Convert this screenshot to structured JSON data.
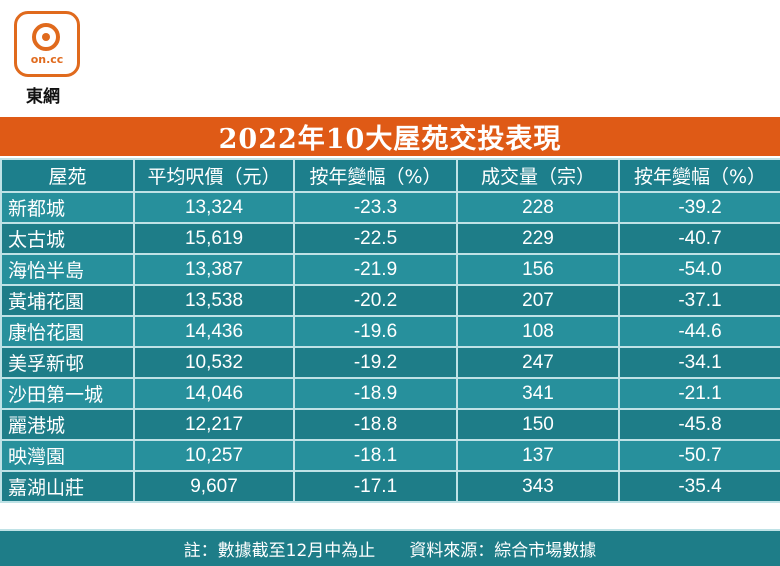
{
  "brand": {
    "logo_text": "on.cc",
    "name": "東網"
  },
  "title": "2022年10大屋苑交投表現",
  "headers": [
    "屋苑",
    "平均呎價（元）",
    "按年變幅（%）",
    "成交量（宗）",
    "按年變幅（%）"
  ],
  "rows": [
    {
      "name": "新都城",
      "avg_price": "13,324",
      "price_change": "-23.3",
      "volume": "228",
      "volume_change": "-39.2"
    },
    {
      "name": "太古城",
      "avg_price": "15,619",
      "price_change": "-22.5",
      "volume": "229",
      "volume_change": "-40.7"
    },
    {
      "name": "海怡半島",
      "avg_price": "13,387",
      "price_change": "-21.9",
      "volume": "156",
      "volume_change": "-54.0"
    },
    {
      "name": "黃埔花園",
      "avg_price": "13,538",
      "price_change": "-20.2",
      "volume": "207",
      "volume_change": "-37.1"
    },
    {
      "name": "康怡花園",
      "avg_price": "14,436",
      "price_change": "-19.6",
      "volume": "108",
      "volume_change": "-44.6"
    },
    {
      "name": "美孚新邨",
      "avg_price": "10,532",
      "price_change": "-19.2",
      "volume": "247",
      "volume_change": "-34.1"
    },
    {
      "name": "沙田第一城",
      "avg_price": "14,046",
      "price_change": "-18.9",
      "volume": "341",
      "volume_change": "-21.1"
    },
    {
      "name": "麗港城",
      "avg_price": "12,217",
      "price_change": "-18.8",
      "volume": "150",
      "volume_change": "-45.8"
    },
    {
      "name": "映灣園",
      "avg_price": "10,257",
      "price_change": "-18.1",
      "volume": "137",
      "volume_change": "-50.7"
    },
    {
      "name": "嘉湖山莊",
      "avg_price": "9,607",
      "price_change": "-17.1",
      "volume": "343",
      "volume_change": "-35.4"
    }
  ],
  "footer": {
    "note": "註：數據截至12月中為止",
    "source": "資料來源：綜合市場數據"
  },
  "colors": {
    "accent": "#df5a16",
    "header_bg": "#1d7f8c",
    "row_light": "#27909c",
    "row_dark": "#1e7d88"
  }
}
